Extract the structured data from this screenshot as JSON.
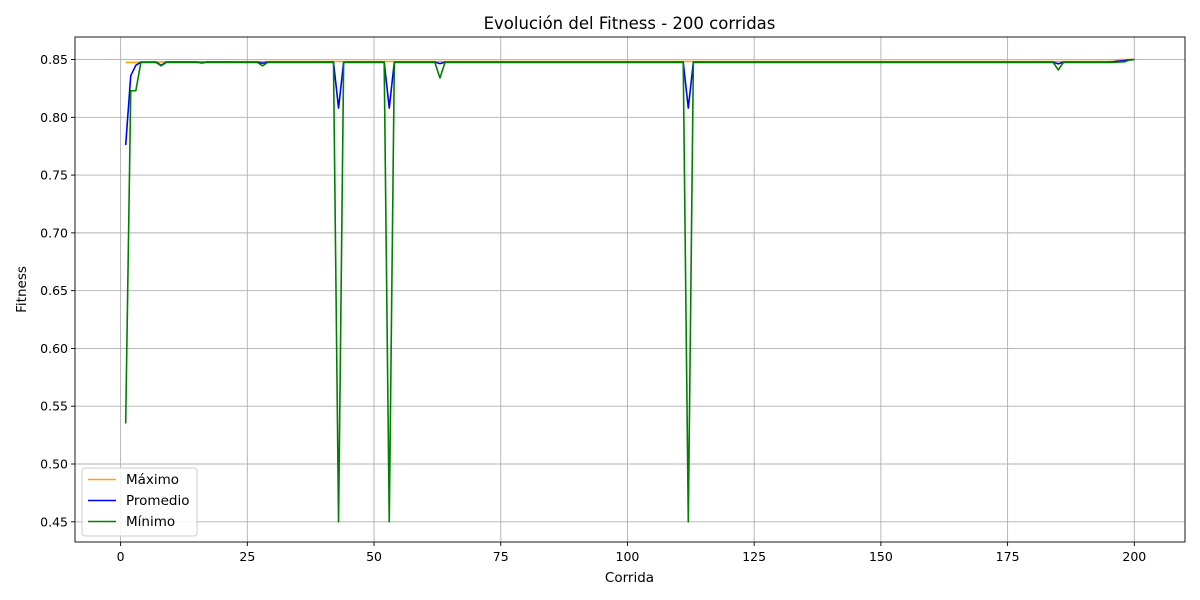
{
  "chart_data": {
    "type": "line",
    "title": "Evolución del Fitness - 200 corridas",
    "xlabel": "Corrida",
    "ylabel": "Fitness",
    "xlim": [
      -9,
      210
    ],
    "ylim": [
      0.4325,
      0.8695
    ],
    "x_ticks": [
      0,
      25,
      50,
      75,
      100,
      125,
      150,
      175,
      200
    ],
    "y_ticks": [
      0.45,
      0.5,
      0.55,
      0.6,
      0.65,
      0.7,
      0.75,
      0.8,
      0.85
    ],
    "y_tick_labels": [
      "0.45",
      "0.50",
      "0.55",
      "0.60",
      "0.65",
      "0.70",
      "0.75",
      "0.80",
      "0.85"
    ],
    "grid": true,
    "legend_position": "lower-left",
    "series": [
      {
        "name": "Máximo",
        "color": "#ffa500",
        "x": [
          1,
          10,
          20,
          30,
          43,
          53,
          112,
          150,
          185,
          196,
          197,
          200
        ],
        "y": [
          0.8475,
          0.848,
          0.848,
          0.8483,
          0.8483,
          0.8483,
          0.8483,
          0.8483,
          0.8483,
          0.8483,
          0.85,
          0.85
        ]
      },
      {
        "name": "Promedio",
        "color": "#0000ff",
        "x": [
          1,
          2,
          3,
          4,
          7,
          8,
          9,
          15,
          16,
          17,
          27,
          28,
          29,
          42,
          43,
          44,
          52,
          53,
          54,
          62,
          63,
          64,
          111,
          112,
          113,
          184,
          185,
          186,
          195,
          198,
          199,
          200
        ],
        "y": [
          0.776,
          0.836,
          0.845,
          0.8478,
          0.8478,
          0.845,
          0.8478,
          0.8478,
          0.847,
          0.8478,
          0.8478,
          0.8468,
          0.8478,
          0.8478,
          0.808,
          0.8478,
          0.8478,
          0.808,
          0.8478,
          0.8478,
          0.8465,
          0.8478,
          0.8478,
          0.808,
          0.8478,
          0.8478,
          0.8462,
          0.8478,
          0.8478,
          0.849,
          0.8498,
          0.85
        ]
      },
      {
        "name": "Mínimo",
        "color": "#008000",
        "x": [
          1,
          2,
          3,
          4,
          7,
          8,
          9,
          27,
          28,
          29,
          42,
          43,
          44,
          52,
          53,
          54,
          62,
          63,
          64,
          111,
          112,
          113,
          184,
          185,
          186,
          195,
          198,
          199,
          200
        ],
        "y": [
          0.535,
          0.823,
          0.823,
          0.8475,
          0.8475,
          0.8445,
          0.8475,
          0.8475,
          0.8445,
          0.8475,
          0.8475,
          0.45,
          0.8475,
          0.8475,
          0.45,
          0.8475,
          0.8475,
          0.834,
          0.8475,
          0.8475,
          0.45,
          0.8475,
          0.8475,
          0.841,
          0.8475,
          0.8475,
          0.848,
          0.8495,
          0.85
        ]
      }
    ]
  }
}
